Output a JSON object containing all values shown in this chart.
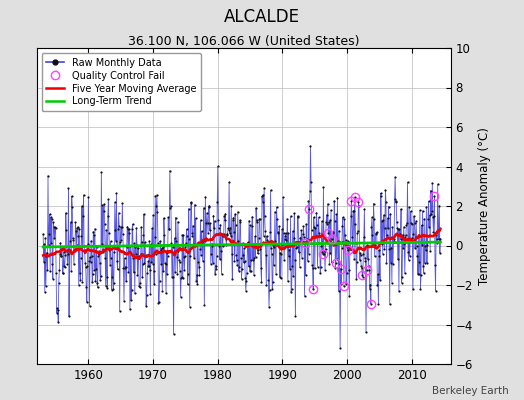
{
  "title": "ALCALDE",
  "subtitle": "36.100 N, 106.066 W (United States)",
  "ylabel": "Temperature Anomaly (°C)",
  "attribution": "Berkeley Earth",
  "xlim": [
    1952,
    2016
  ],
  "ylim": [
    -6,
    10
  ],
  "yticks": [
    -6,
    -4,
    -2,
    0,
    2,
    4,
    6,
    8,
    10
  ],
  "xticks": [
    1960,
    1970,
    1980,
    1990,
    2000,
    2010
  ],
  "start_year": 1953.0,
  "end_year": 2014.5,
  "bg_color": "#e0e0e0",
  "plot_bg_color": "#ffffff",
  "raw_line_color": "#4444dd",
  "raw_dot_color": "#111111",
  "qc_color": "#ff44ff",
  "moving_avg_color": "#ee0000",
  "trend_color": "#00cc00",
  "seed": 12
}
